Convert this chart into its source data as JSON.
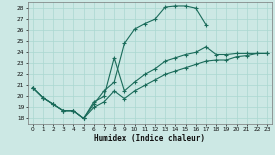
{
  "xlabel": "Humidex (Indice chaleur)",
  "bg_color": "#cce8e4",
  "line_color": "#1a6b5a",
  "grid_color": "#aad8d0",
  "xlim": [
    -0.5,
    23.5
  ],
  "ylim": [
    17.5,
    28.6
  ],
  "xticks": [
    0,
    1,
    2,
    3,
    4,
    5,
    6,
    7,
    8,
    9,
    10,
    11,
    12,
    13,
    14,
    15,
    16,
    17,
    18,
    19,
    20,
    21,
    22,
    23
  ],
  "yticks": [
    18,
    19,
    20,
    21,
    22,
    23,
    24,
    25,
    26,
    27,
    28
  ],
  "line1_x": [
    0,
    1,
    2,
    3,
    4,
    5,
    6,
    7,
    8,
    9,
    10,
    11,
    12,
    13,
    14,
    15,
    16,
    17
  ],
  "line1_y": [
    20.8,
    19.9,
    19.3,
    18.7,
    18.7,
    18.0,
    19.3,
    20.5,
    21.3,
    24.8,
    26.1,
    26.6,
    27.0,
    28.1,
    28.2,
    28.2,
    28.0,
    26.5
  ],
  "line2_x": [
    0,
    1,
    2,
    3,
    4,
    5,
    6,
    7,
    8,
    9,
    10,
    11,
    12,
    13,
    14,
    15,
    16,
    17,
    18,
    19,
    20,
    21,
    22,
    23
  ],
  "line2_y": [
    20.8,
    19.9,
    19.3,
    18.7,
    18.7,
    18.0,
    19.5,
    20.0,
    23.5,
    20.5,
    21.3,
    22.0,
    22.5,
    23.2,
    23.5,
    23.8,
    24.0,
    24.5,
    23.8,
    23.8,
    23.9,
    23.9,
    23.9,
    23.9
  ],
  "line3_x": [
    0,
    1,
    2,
    3,
    4,
    5,
    6,
    7,
    8,
    9,
    10,
    11,
    12,
    13,
    14,
    15,
    16,
    17,
    18,
    19,
    20,
    21,
    22,
    23
  ],
  "line3_y": [
    20.8,
    19.9,
    19.3,
    18.7,
    18.7,
    18.0,
    19.0,
    19.5,
    20.5,
    19.8,
    20.5,
    21.0,
    21.5,
    22.0,
    22.3,
    22.6,
    22.9,
    23.2,
    23.3,
    23.3,
    23.6,
    23.7,
    23.9,
    23.9
  ]
}
